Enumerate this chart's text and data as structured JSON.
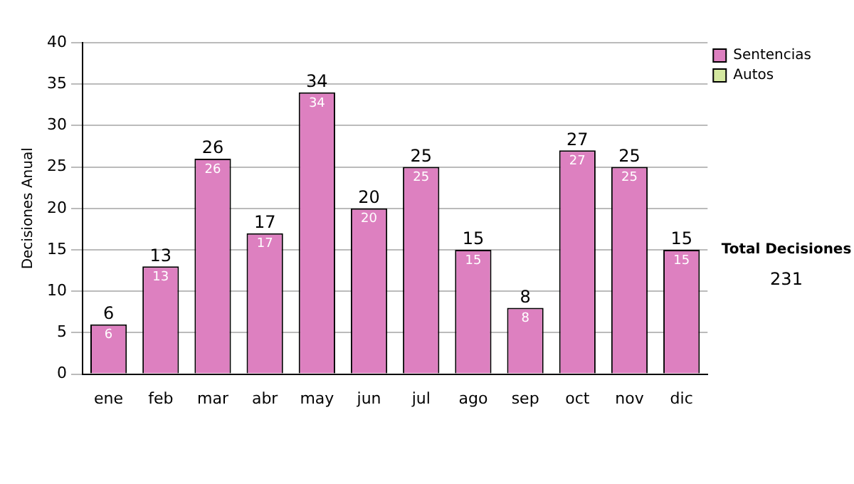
{
  "chart_data": {
    "type": "bar",
    "ylabel": "Decisiones Anual",
    "categories": [
      "ene",
      "feb",
      "mar",
      "abr",
      "may",
      "jun",
      "jul",
      "ago",
      "sep",
      "oct",
      "nov",
      "dic"
    ],
    "series": [
      {
        "name": "Sentencias",
        "color": "#dd80c0",
        "values": [
          6,
          13,
          26,
          17,
          34,
          20,
          25,
          15,
          8,
          27,
          25,
          15
        ],
        "value_labels": [
          "6",
          "13",
          "26",
          "17",
          "34",
          "20",
          "25",
          "15",
          "8",
          "27",
          "25",
          "15"
        ]
      },
      {
        "name": "Autos",
        "color": "#d4e8a0",
        "values": [
          0,
          0,
          0,
          0,
          0,
          0,
          0,
          0,
          0,
          0,
          0,
          0
        ]
      }
    ],
    "stacked": true,
    "totals": [
      "6",
      "13",
      "26",
      "17",
      "34",
      "20",
      "25",
      "15",
      "8",
      "27",
      "25",
      "15"
    ],
    "ylim": [
      0,
      40
    ],
    "yticks": [
      0,
      5,
      10,
      15,
      20,
      25,
      30,
      35,
      40
    ],
    "grid": "y",
    "legend": "right",
    "annotations": [
      "Total Decisiones",
      "231"
    ]
  }
}
